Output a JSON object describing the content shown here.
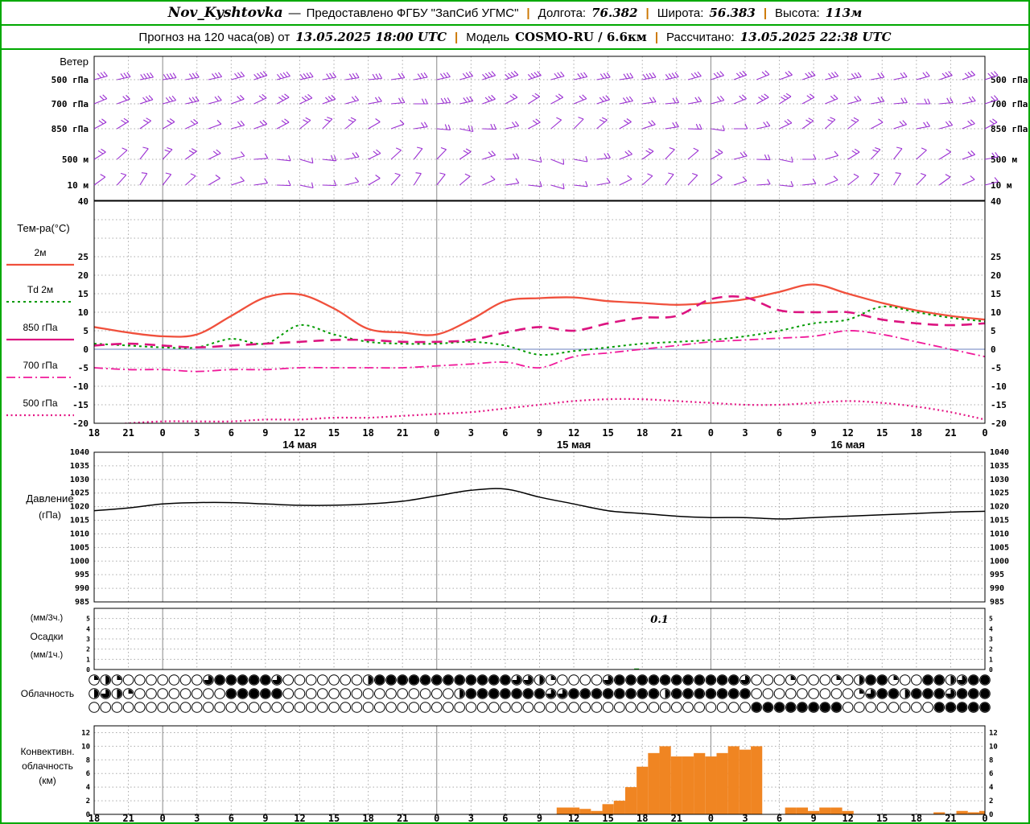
{
  "header": {
    "row1": {
      "station": "Nov_Kyshtovka",
      "dash": "—",
      "provider": "Предоставлено ФГБУ \"ЗапСиб УГМС\"",
      "sep": "|",
      "lon_label": "Долгота:",
      "lon_value": "76.382",
      "lat_label": "Широта:",
      "lat_value": "56.383",
      "alt_label": "Высота:",
      "alt_value": "113м"
    },
    "row2": {
      "forecast_label": "Прогноз на 120 часа(ов) от",
      "forecast_start": "13.05.2025 18:00 UTC",
      "sep": "|",
      "model_label": "Модель",
      "model_value": "COSMO-RU / 6.6км",
      "calc_label": "Рассчитано:",
      "calc_value": "13.05.2025 22:38 UTC"
    }
  },
  "colors": {
    "frame_green": "#00a800",
    "separator_orange": "#cc7700",
    "grid": "#aaaaaa",
    "grid_day": "#888888",
    "wind_barb": "#9b30d2",
    "t2m": "#f0503c",
    "td2m": "#009a00",
    "t850": "#dc1480",
    "t700": "#f01a9a",
    "t500": "#e41484",
    "pressure": "#000000",
    "precip_bar": "#00a000",
    "conv_cloud": "#f08522",
    "zero_line": "#8899cc"
  },
  "chart_data": {
    "type": "meteogram",
    "time_axis": {
      "start": "13.05.2025 18:00 UTC",
      "step_hours": 3,
      "total_hours": 78,
      "hour_labels": [
        "18",
        "21",
        "0",
        "3",
        "6",
        "9",
        "12",
        "15",
        "18",
        "21",
        "0",
        "3",
        "6",
        "9",
        "12",
        "15",
        "18",
        "21",
        "0",
        "3",
        "6",
        "9",
        "12",
        "15",
        "18",
        "21",
        "0"
      ],
      "day_labels": [
        {
          "label": "14 мая",
          "center_hour": 18
        },
        {
          "label": "15 мая",
          "center_hour": 42
        },
        {
          "label": "16 мая",
          "center_hour": 66
        }
      ]
    },
    "wind": {
      "panel_label": "Ветер",
      "levels": [
        "500 гПа",
        "700 гПа",
        "850 гПа",
        "500 м",
        "10 м"
      ],
      "barb_step_hours": 2,
      "barbs": [
        {
          "level": "500 гПа",
          "angles": [
            15,
            12,
            10,
            8,
            10,
            12,
            15,
            18,
            15,
            12,
            10,
            8,
            5,
            8,
            10,
            12,
            15,
            18,
            20,
            18,
            15,
            12,
            10,
            8,
            10,
            12,
            15,
            18,
            20,
            22,
            20,
            18,
            15,
            12,
            10,
            12,
            15,
            18,
            20,
            18
          ],
          "feathers": [
            3,
            3,
            4,
            4,
            3,
            3,
            3,
            4,
            4,
            4,
            3,
            3,
            3,
            2,
            3,
            3,
            3,
            4,
            4,
            4,
            3,
            3,
            3,
            3,
            4,
            4,
            3,
            3,
            3,
            2,
            2,
            3,
            3,
            3,
            2,
            2,
            2,
            3,
            3,
            3
          ]
        },
        {
          "level": "700 гПа",
          "angles": [
            22,
            20,
            18,
            15,
            12,
            15,
            20,
            25,
            28,
            25,
            20,
            15,
            10,
            5,
            0,
            5,
            12,
            20,
            28,
            32,
            28,
            22,
            18,
            12,
            8,
            5,
            10,
            15,
            22,
            28,
            32,
            28,
            22,
            15,
            10,
            5,
            0,
            5,
            12,
            18
          ],
          "feathers": [
            2,
            2,
            3,
            3,
            3,
            2,
            2,
            2,
            3,
            3,
            3,
            2,
            2,
            2,
            2,
            3,
            3,
            3,
            2,
            2,
            2,
            2,
            3,
            3,
            2,
            2,
            2,
            2,
            2,
            3,
            3,
            2,
            2,
            2,
            2,
            2,
            2,
            2,
            2,
            2
          ]
        },
        {
          "level": "850 гПа",
          "angles": [
            28,
            32,
            35,
            30,
            25,
            20,
            15,
            20,
            28,
            38,
            45,
            40,
            30,
            20,
            8,
            -5,
            -12,
            -2,
            12,
            28,
            40,
            45,
            40,
            30,
            18,
            8,
            -2,
            -8,
            0,
            12,
            25,
            35,
            42,
            38,
            28,
            18,
            10,
            15,
            22,
            28
          ],
          "feathers": [
            2,
            2,
            2,
            2,
            2,
            1,
            2,
            2,
            2,
            2,
            2,
            2,
            1,
            1,
            2,
            2,
            2,
            2,
            2,
            2,
            1,
            1,
            2,
            2,
            2,
            2,
            2,
            1,
            1,
            2,
            2,
            2,
            2,
            2,
            1,
            2,
            2,
            2,
            2,
            2
          ]
        },
        {
          "level": "500 м",
          "angles": [
            32,
            42,
            52,
            46,
            36,
            26,
            14,
            4,
            -6,
            -16,
            -6,
            10,
            26,
            42,
            52,
            46,
            34,
            18,
            4,
            -12,
            -22,
            -10,
            6,
            22,
            36,
            46,
            40,
            30,
            14,
            -2,
            -12,
            0,
            16,
            32,
            46,
            52,
            42,
            32,
            20,
            10
          ],
          "feathers": [
            2,
            1,
            1,
            2,
            2,
            2,
            1,
            1,
            1,
            1,
            2,
            2,
            2,
            1,
            1,
            1,
            2,
            2,
            2,
            1,
            1,
            1,
            2,
            2,
            2,
            1,
            1,
            2,
            2,
            2,
            1,
            1,
            1,
            2,
            2,
            1,
            1,
            1,
            2,
            2
          ]
        },
        {
          "level": "10 м",
          "angles": [
            36,
            48,
            58,
            52,
            42,
            30,
            18,
            8,
            -2,
            -12,
            -2,
            14,
            30,
            48,
            58,
            52,
            40,
            24,
            8,
            -6,
            -16,
            -6,
            10,
            26,
            42,
            52,
            46,
            34,
            18,
            4,
            -6,
            6,
            22,
            38,
            52,
            58,
            46,
            36,
            24,
            14
          ],
          "feathers": [
            1,
            1,
            1,
            1,
            1,
            1,
            1,
            1,
            1,
            1,
            1,
            1,
            1,
            1,
            1,
            1,
            1,
            1,
            1,
            1,
            1,
            1,
            1,
            1,
            1,
            1,
            1,
            1,
            1,
            1,
            1,
            1,
            1,
            1,
            1,
            1,
            1,
            1,
            1,
            1
          ]
        }
      ]
    },
    "temperature": {
      "panel_label": "Тем-ра(°C)",
      "unit": "°C",
      "ylim": [
        -20,
        40
      ],
      "ylabels": [
        40,
        25,
        20,
        15,
        10,
        5,
        0,
        -5,
        -10,
        -15,
        -20
      ],
      "step_hours": 3,
      "series": [
        {
          "name": "2м",
          "style": "solid",
          "legend_style": "solid",
          "color_key": "t2m",
          "values": [
            6,
            4.5,
            3.5,
            4,
            9,
            14,
            14.8,
            11,
            5.5,
            4.5,
            4,
            8,
            13,
            13.8,
            14,
            13,
            12.5,
            12,
            12.5,
            13.5,
            15.5,
            17.5,
            15,
            12.5,
            10.5,
            9,
            8
          ]
        },
        {
          "name": "Td 2м",
          "style": "dotted",
          "legend_style": "dotted",
          "color_key": "td2m",
          "values": [
            1.5,
            1,
            0.5,
            0.5,
            2.8,
            1.5,
            6.5,
            4,
            2,
            1.5,
            1.5,
            2,
            1,
            -1.5,
            -0.5,
            0.5,
            1.5,
            2,
            2.5,
            3.5,
            5,
            7,
            8,
            11.5,
            10,
            8.5,
            7.5
          ]
        },
        {
          "name": "850 гПа",
          "style": "longdash",
          "legend_style": "solid",
          "color_key": "t850",
          "values": [
            1,
            1.5,
            1,
            0.5,
            1,
            1.5,
            2,
            2.5,
            2.5,
            2,
            2,
            2.5,
            4.5,
            6,
            5,
            7,
            8.5,
            9,
            13.5,
            14,
            10.5,
            10,
            10,
            8,
            7,
            6.5,
            7
          ]
        },
        {
          "name": "700 гПа",
          "style": "dashdot",
          "legend_style": "dashdot",
          "color_key": "t700",
          "values": [
            -5,
            -5.5,
            -5.5,
            -6,
            -5.5,
            -5.5,
            -5,
            -5,
            -5,
            -5,
            -4.5,
            -4,
            -3.5,
            -5,
            -2,
            -1,
            0,
            1,
            2,
            2.5,
            3,
            3.5,
            5,
            4,
            2,
            0,
            -2
          ]
        },
        {
          "name": "500 гПа",
          "style": "dense-dot",
          "legend_style": "dense-dot",
          "color_key": "t500",
          "values": [
            -21,
            -20,
            -19.5,
            -19.5,
            -19.5,
            -19,
            -19,
            -18.5,
            -18.5,
            -18,
            -17.5,
            -17,
            -16,
            -15,
            -14,
            -13.5,
            -13.5,
            -14,
            -14.5,
            -15,
            -15,
            -14.5,
            -14,
            -14.5,
            -15.5,
            -17,
            -19
          ]
        }
      ]
    },
    "pressure": {
      "panel_label_1": "Давление",
      "panel_label_2": "(гПа)",
      "ylim": [
        985,
        1040
      ],
      "ylabels": [
        1040,
        1035,
        1030,
        1025,
        1020,
        1015,
        1010,
        1005,
        1000,
        995,
        990,
        985
      ],
      "step_hours": 3,
      "values": [
        1018.5,
        1019.5,
        1021,
        1021.5,
        1021.5,
        1021,
        1020.5,
        1020.5,
        1021,
        1022,
        1024,
        1026,
        1026.5,
        1023.5,
        1021,
        1018.5,
        1017.5,
        1016.5,
        1016,
        1016,
        1015.5,
        1016,
        1016.5,
        1017,
        1017.5,
        1018,
        1018.3
      ]
    },
    "precipitation": {
      "labels": [
        "(мм/3ч.)",
        "Осадки",
        "(мм/1ч.)"
      ],
      "ylim": [
        0,
        6
      ],
      "ylabels": [
        5,
        4,
        3,
        2,
        1,
        0
      ],
      "bars": [
        {
          "hour": 47.5,
          "value": 0.1
        }
      ],
      "annotation": {
        "text": "0.1",
        "hour": 49.5
      }
    },
    "cloudiness": {
      "panel_label": "Облачность",
      "octas_max": 8,
      "rows": [
        {
          "name": "row-1",
          "segments": [
            [
              0,
              0,
              2
            ],
            [
              1,
              1,
              4
            ],
            [
              2,
              2,
              2
            ],
            [
              10,
              10,
              6
            ],
            [
              11,
              15,
              8
            ],
            [
              16,
              16,
              6
            ],
            [
              24,
              24,
              4
            ],
            [
              25,
              36,
              8
            ],
            [
              37,
              38,
              6
            ],
            [
              39,
              39,
              4
            ],
            [
              40,
              40,
              2
            ],
            [
              45,
              45,
              6
            ],
            [
              46,
              56,
              8
            ],
            [
              57,
              57,
              6
            ],
            [
              61,
              61,
              2
            ],
            [
              65,
              65,
              2
            ],
            [
              67,
              67,
              4
            ],
            [
              68,
              69,
              8
            ],
            [
              70,
              70,
              2
            ],
            [
              73,
              74,
              8
            ],
            [
              75,
              75,
              4
            ],
            [
              76,
              76,
              6
            ],
            [
              77,
              78,
              8
            ]
          ]
        },
        {
          "name": "row-2",
          "segments": [
            [
              0,
              0,
              4
            ],
            [
              1,
              1,
              6
            ],
            [
              2,
              2,
              4
            ],
            [
              3,
              3,
              2
            ],
            [
              12,
              16,
              8
            ],
            [
              32,
              32,
              4
            ],
            [
              33,
              39,
              8
            ],
            [
              40,
              41,
              6
            ],
            [
              42,
              49,
              8
            ],
            [
              50,
              50,
              4
            ],
            [
              51,
              57,
              8
            ],
            [
              67,
              67,
              2
            ],
            [
              68,
              68,
              6
            ],
            [
              69,
              70,
              8
            ],
            [
              71,
              71,
              4
            ],
            [
              72,
              74,
              8
            ],
            [
              75,
              75,
              6
            ],
            [
              76,
              78,
              8
            ]
          ]
        },
        {
          "name": "row-3",
          "segments": [
            [
              58,
              65,
              8
            ],
            [
              74,
              78,
              8
            ]
          ]
        }
      ]
    },
    "convective": {
      "labels": [
        "Конвективн.",
        "облачность",
        "(км)"
      ],
      "ylim": [
        0,
        13
      ],
      "ylabels": [
        12,
        10,
        8,
        6,
        4,
        2,
        0
      ],
      "bars_hour_km": [
        [
          41,
          1
        ],
        [
          42,
          1
        ],
        [
          43,
          0.8
        ],
        [
          44,
          0.5
        ],
        [
          45,
          1.5
        ],
        [
          46,
          2
        ],
        [
          47,
          4
        ],
        [
          48,
          7
        ],
        [
          49,
          9
        ],
        [
          50,
          10
        ],
        [
          51,
          8.5
        ],
        [
          52,
          8.5
        ],
        [
          53,
          9
        ],
        [
          54,
          8.5
        ],
        [
          55,
          9
        ],
        [
          56,
          10
        ],
        [
          57,
          9.5
        ],
        [
          58,
          10
        ],
        [
          61,
          1
        ],
        [
          62,
          1
        ],
        [
          63,
          0.5
        ],
        [
          64,
          1
        ],
        [
          65,
          1
        ],
        [
          66,
          0.5
        ],
        [
          74,
          0.3
        ],
        [
          76,
          0.5
        ],
        [
          77,
          0.3
        ],
        [
          78,
          0.5
        ]
      ]
    }
  }
}
